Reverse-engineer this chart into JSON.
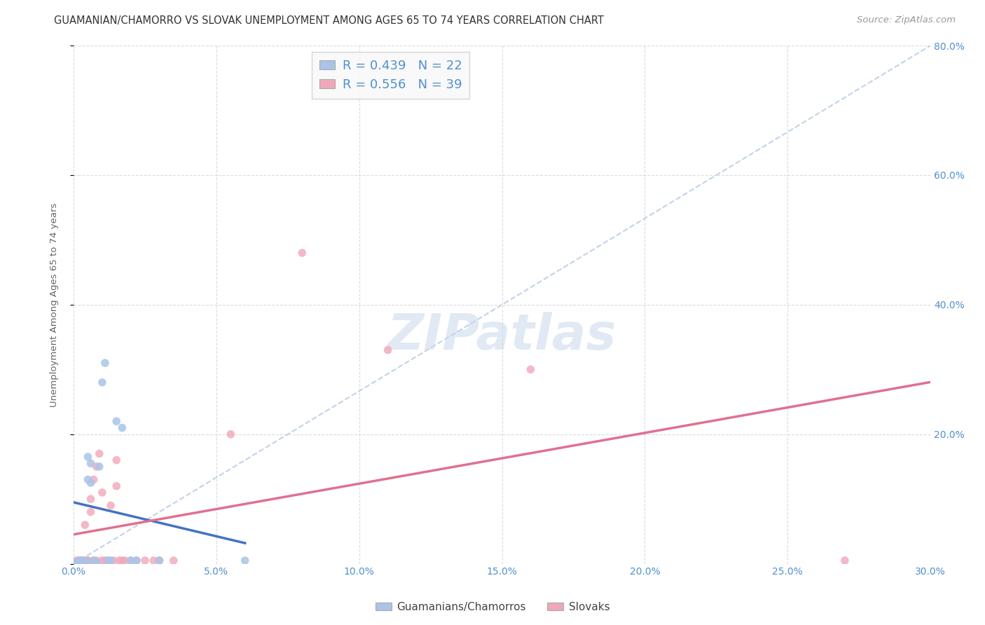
{
  "title": "GUAMANIAN/CHAMORRO VS SLOVAK UNEMPLOYMENT AMONG AGES 65 TO 74 YEARS CORRELATION CHART",
  "source": "Source: ZipAtlas.com",
  "ylabel": "Unemployment Among Ages 65 to 74 years",
  "xlim": [
    0.0,
    0.3
  ],
  "ylim": [
    0.0,
    0.8
  ],
  "xticks": [
    0.0,
    0.05,
    0.1,
    0.15,
    0.2,
    0.25,
    0.3
  ],
  "yticks": [
    0.0,
    0.2,
    0.4,
    0.6,
    0.8
  ],
  "xtick_labels": [
    "0.0%",
    "5.0%",
    "10.0%",
    "15.0%",
    "20.0%",
    "25.0%",
    "30.0%"
  ],
  "ytick_labels_right": [
    "",
    "20.0%",
    "40.0%",
    "60.0%",
    "80.0%"
  ],
  "guamanian_R": 0.439,
  "guamanian_N": 22,
  "slovak_R": 0.556,
  "slovak_N": 39,
  "guamanian_color": "#aac4e8",
  "slovak_color": "#f0a8b8",
  "guamanian_line_color": "#4472c4",
  "slovak_line_color": "#e07090",
  "diagonal_color": "#b8cce4",
  "legend_facecolor": "#f8f8f8",
  "background_color": "#ffffff",
  "grid_color": "#d8d8d8",
  "tick_color": "#5090d0",
  "guamanian_x": [
    0.001,
    0.002,
    0.003,
    0.004,
    0.004,
    0.005,
    0.005,
    0.006,
    0.006,
    0.007,
    0.008,
    0.009,
    0.01,
    0.011,
    0.012,
    0.013,
    0.015,
    0.017,
    0.02,
    0.022,
    0.03,
    0.06
  ],
  "guamanian_y": [
    0.003,
    0.005,
    0.005,
    0.003,
    0.005,
    0.13,
    0.165,
    0.125,
    0.155,
    0.005,
    0.003,
    0.15,
    0.28,
    0.31,
    0.005,
    0.005,
    0.22,
    0.21,
    0.005,
    0.005,
    0.005,
    0.005
  ],
  "slovak_x": [
    0.001,
    0.001,
    0.002,
    0.002,
    0.003,
    0.003,
    0.004,
    0.004,
    0.005,
    0.005,
    0.006,
    0.006,
    0.007,
    0.007,
    0.008,
    0.008,
    0.009,
    0.01,
    0.01,
    0.011,
    0.012,
    0.013,
    0.014,
    0.015,
    0.015,
    0.016,
    0.017,
    0.018,
    0.02,
    0.022,
    0.025,
    0.028,
    0.03,
    0.035,
    0.055,
    0.08,
    0.11,
    0.16,
    0.27
  ],
  "slovak_y": [
    0.003,
    0.005,
    0.005,
    0.005,
    0.005,
    0.005,
    0.005,
    0.06,
    0.005,
    0.005,
    0.08,
    0.1,
    0.005,
    0.13,
    0.005,
    0.15,
    0.17,
    0.005,
    0.11,
    0.005,
    0.005,
    0.09,
    0.005,
    0.12,
    0.16,
    0.005,
    0.005,
    0.005,
    0.005,
    0.005,
    0.005,
    0.005,
    0.005,
    0.005,
    0.2,
    0.48,
    0.33,
    0.3,
    0.005
  ],
  "title_fontsize": 10.5,
  "source_fontsize": 9.5,
  "axis_label_fontsize": 9.5,
  "tick_fontsize": 10,
  "legend_fontsize": 13,
  "marker_size": 70,
  "watermark_text": "ZIPatlas",
  "watermark_color": "#c8d8ec",
  "legend_label1": "R = 0.439   N = 22",
  "legend_label2": "R = 0.556   N = 39",
  "bottom_legend_label1": "Guamanians/Chamorros",
  "bottom_legend_label2": "Slovaks"
}
